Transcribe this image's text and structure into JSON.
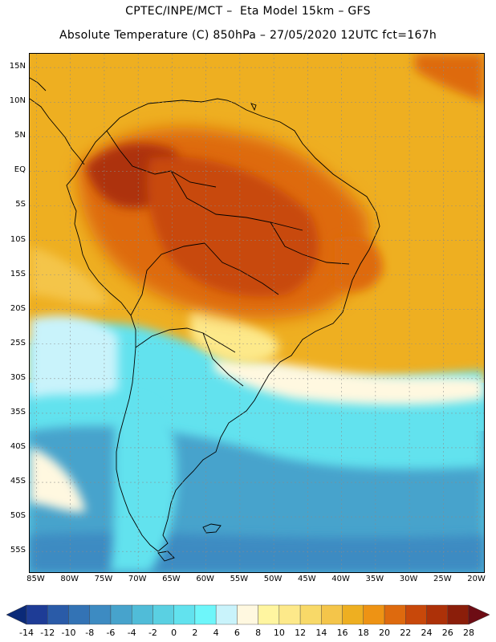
{
  "title": {
    "line1": "CPTEC/INPE/MCT –  Eta Model 15km – GFS",
    "line2": "Absolute Temperature (C) 850hPa – 27/05/2020 12UTC fct=167h"
  },
  "map": {
    "region": "South America",
    "lon_range": [
      -86,
      -19
    ],
    "lat_range": [
      -58,
      17
    ],
    "lat_ticks": [
      {
        "value": 15,
        "label": "15N"
      },
      {
        "value": 10,
        "label": "10N"
      },
      {
        "value": 5,
        "label": "5N"
      },
      {
        "value": 0,
        "label": "EQ"
      },
      {
        "value": -5,
        "label": "5S"
      },
      {
        "value": -10,
        "label": "10S"
      },
      {
        "value": -15,
        "label": "15S"
      },
      {
        "value": -20,
        "label": "20S"
      },
      {
        "value": -25,
        "label": "25S"
      },
      {
        "value": -30,
        "label": "30S"
      },
      {
        "value": -35,
        "label": "35S"
      },
      {
        "value": -40,
        "label": "40S"
      },
      {
        "value": -45,
        "label": "45S"
      },
      {
        "value": -50,
        "label": "50S"
      },
      {
        "value": -55,
        "label": "55S"
      }
    ],
    "lon_ticks": [
      {
        "value": -85,
        "label": "85W"
      },
      {
        "value": -80,
        "label": "80W"
      },
      {
        "value": -75,
        "label": "75W"
      },
      {
        "value": -70,
        "label": "70W"
      },
      {
        "value": -65,
        "label": "65W"
      },
      {
        "value": -60,
        "label": "60W"
      },
      {
        "value": -55,
        "label": "55W"
      },
      {
        "value": -50,
        "label": "50W"
      },
      {
        "value": -45,
        "label": "45W"
      },
      {
        "value": -40,
        "label": "40W"
      },
      {
        "value": -35,
        "label": "35W"
      },
      {
        "value": -30,
        "label": "30W"
      },
      {
        "value": -25,
        "label": "25W"
      },
      {
        "value": -20,
        "label": "20W"
      }
    ]
  },
  "colorbar": {
    "labels": [
      "-14",
      "-12",
      "-10",
      "-8",
      "-6",
      "-4",
      "-2",
      "0",
      "2",
      "4",
      "6",
      "8",
      "10",
      "12",
      "14",
      "16",
      "18",
      "20",
      "22",
      "24",
      "26",
      "28"
    ],
    "colors": [
      "#1e3c96",
      "#2a5ba8",
      "#3373b5",
      "#3d8bc2",
      "#47a3cc",
      "#50bcd8",
      "#5ad0e2",
      "#62e2ee",
      "#6ef6fa",
      "#c9f3fb",
      "#fff8e0",
      "#fff5a0",
      "#fde98a",
      "#f8d968",
      "#f4c54a",
      "#eeaf21",
      "#ee9314",
      "#de6a0e",
      "#c8480a",
      "#ad3108",
      "#8b1e0a"
    ],
    "under_color": "#0b2a78",
    "over_color": "#6d0c14"
  }
}
